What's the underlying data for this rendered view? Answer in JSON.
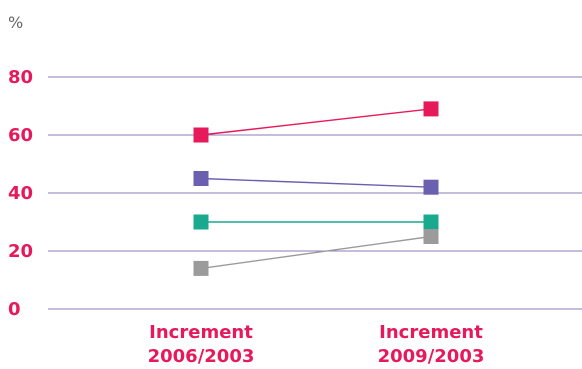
{
  "chart_data": {
    "type": "line",
    "unit_label": "%",
    "categories": [
      [
        "Increment",
        "2006/2003"
      ],
      [
        "Increment",
        "2009/2003"
      ]
    ],
    "ylim": [
      0,
      80
    ],
    "yticks": [
      "0",
      "20",
      "40",
      "60",
      "80"
    ],
    "grid": true,
    "series": [
      {
        "color": "#e6195a",
        "values": [
          60,
          69
        ]
      },
      {
        "color": "#6b5fb0",
        "values": [
          45,
          42
        ]
      },
      {
        "color": "#19a98f",
        "values": [
          30,
          30
        ]
      },
      {
        "color": "#9b9b9b",
        "values": [
          14,
          25
        ]
      }
    ]
  }
}
